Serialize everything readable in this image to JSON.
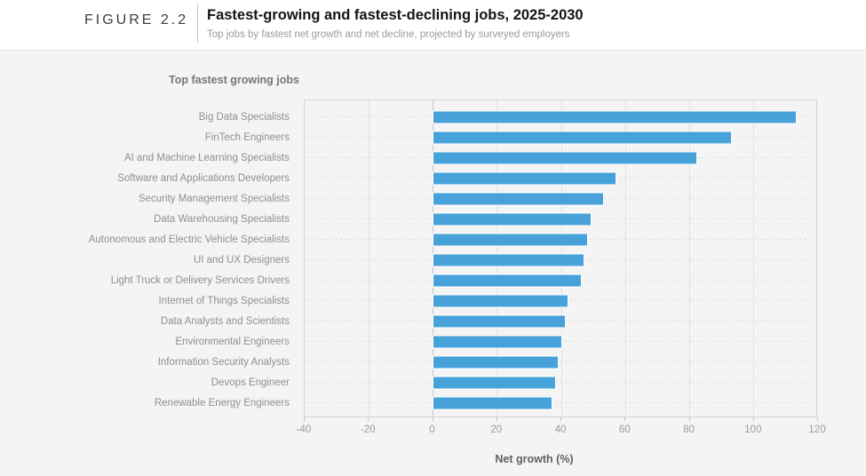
{
  "figure": {
    "label": "FIGURE 2.2",
    "title": "Fastest-growing and fastest-declining jobs, 2025-2030",
    "subtitle": "Top jobs by fastest net growth and net decline, projected by surveyed employers"
  },
  "chart_data": {
    "type": "bar",
    "orientation": "horizontal",
    "title": "Top fastest growing jobs",
    "xlabel": "Net growth (%)",
    "xlim": [
      -40,
      120
    ],
    "xticks": [
      -40,
      -20,
      0,
      20,
      40,
      60,
      80,
      100,
      120
    ],
    "grid": true,
    "legend": "none",
    "bar_color": "#47a2d9",
    "categories": [
      "Big Data Specialists",
      "FinTech Engineers",
      "AI and Machine Learning Specialists",
      "Software and Applications Developers",
      "Security Management Specialists",
      "Data Warehousing Specialists",
      "Autonomous and Electric Vehicle Specialists",
      "UI and UX Designers",
      "Light Truck or Delivery Services Drivers",
      "Internet of Things Specialists",
      "Data Analysts and Scientists",
      "Environmental Engineers",
      "Information Security Analysts",
      "Devops Engineer",
      "Renewable Energy Engineers"
    ],
    "values": [
      113,
      93,
      82,
      57,
      53,
      49,
      48,
      47,
      46,
      42,
      41,
      40,
      39,
      38,
      37
    ]
  }
}
